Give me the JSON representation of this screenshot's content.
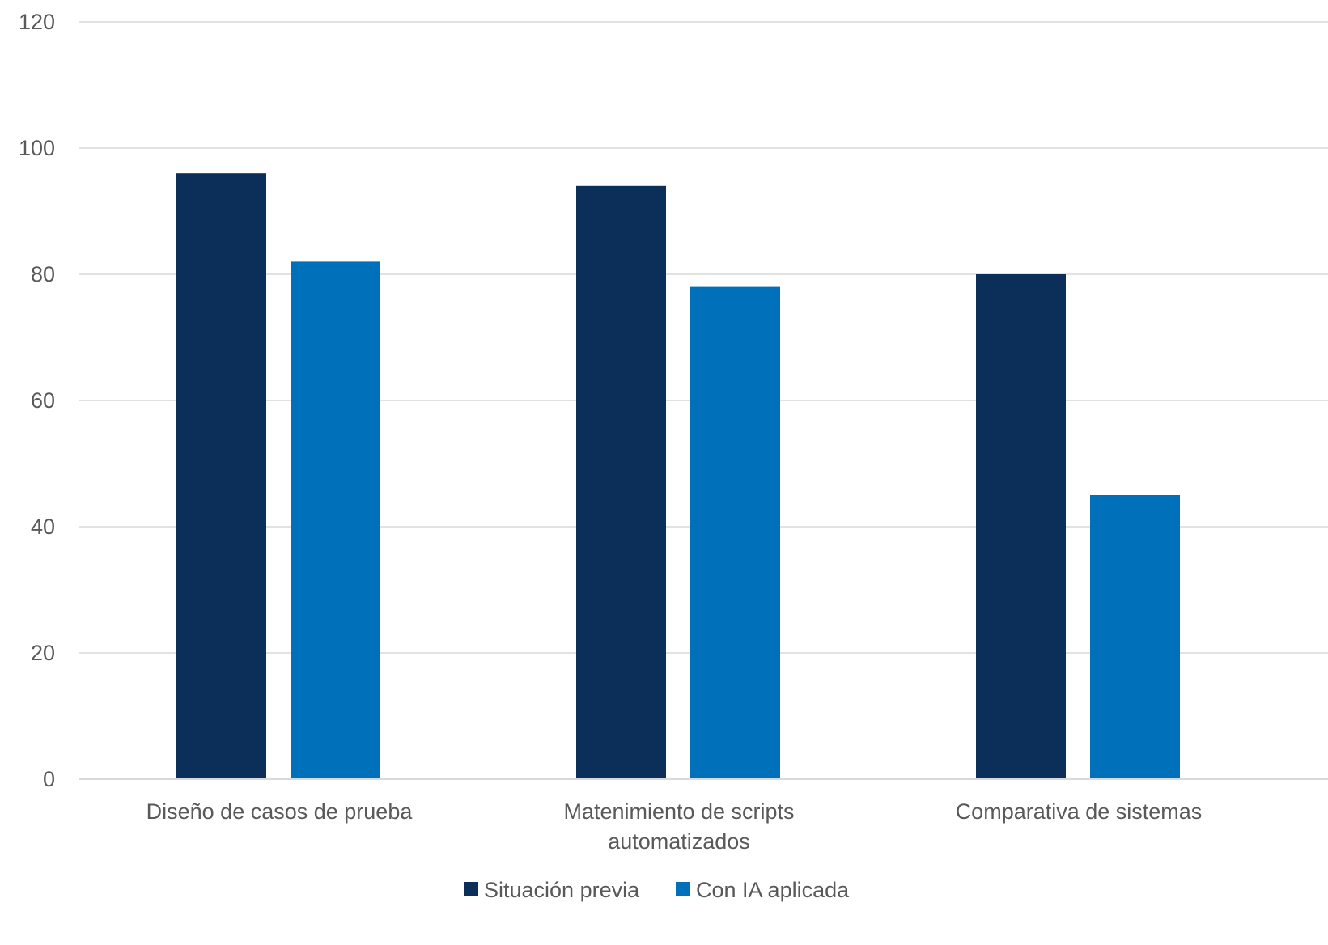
{
  "chart_data": {
    "type": "bar",
    "title": "",
    "xlabel": "",
    "ylabel": "",
    "categories": [
      [
        "Diseño de casos de prueba"
      ],
      [
        "Matenimiento de scripts",
        "automatizados"
      ],
      [
        "Comparativa de sistemas"
      ]
    ],
    "series": [
      {
        "name": "Situación previa",
        "values": [
          96,
          94,
          80
        ],
        "color": "#0c2f5a"
      },
      {
        "name": "Con IA aplicada",
        "values": [
          82,
          78,
          45
        ],
        "color": "#0070bb"
      }
    ],
    "ylim": [
      0,
      120
    ],
    "yticks": [
      0,
      20,
      40,
      60,
      80,
      100,
      120
    ],
    "grid": true,
    "legend_position": "bottom-center"
  }
}
